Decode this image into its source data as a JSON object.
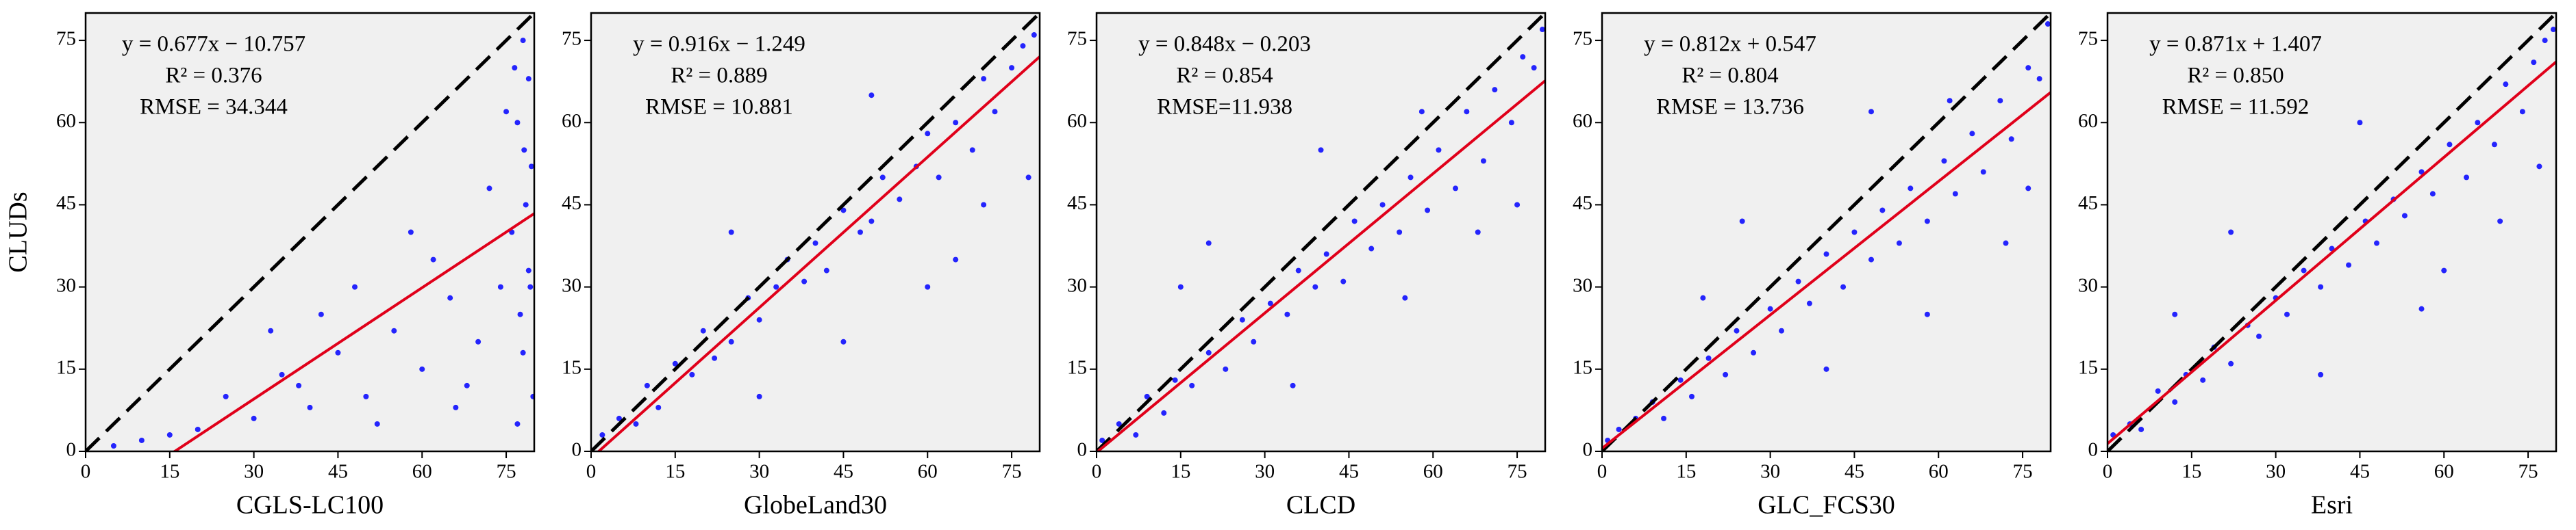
{
  "chart_data": [
    {
      "type": "scatter",
      "x_label": "CGLS-LC100",
      "y_label": "CLUDs",
      "color": "#0000ff",
      "annotations": [
        "y = 0.677x − 10.757",
        "R² = 0.376",
        "RMSE = 34.344"
      ],
      "fit": {
        "slope": 0.677,
        "intercept": -10.757,
        "color": "#e0001a"
      },
      "x": [
        78,
        79,
        77,
        79.5,
        78.5,
        76,
        79,
        77.5,
        78,
        79.8,
        76.5,
        78.2,
        79.3,
        77,
        75,
        70,
        65,
        60,
        55,
        50,
        45,
        40,
        35,
        30,
        25,
        20,
        15,
        10,
        5,
        62,
        48,
        72,
        68,
        33,
        52,
        58,
        42,
        74,
        66,
        38
      ],
      "y": [
        75,
        68,
        60,
        52,
        45,
        40,
        33,
        25,
        18,
        10,
        70,
        55,
        30,
        5,
        62,
        20,
        28,
        15,
        22,
        10,
        18,
        8,
        14,
        6,
        10,
        4,
        3,
        2,
        1,
        35,
        30,
        48,
        12,
        22,
        5,
        40,
        25,
        30,
        8,
        12
      ],
      "xlim": [
        0,
        80
      ],
      "ylim": [
        0,
        80
      ],
      "xticks": [
        0,
        15,
        30,
        45,
        60,
        75
      ],
      "yticks": [
        0,
        15,
        30,
        45,
        60,
        75
      ]
    },
    {
      "type": "scatter",
      "x_label": "GlobeLand30",
      "color": "#0000ff",
      "annotations": [
        "y = 0.916x − 1.249",
        "R² = 0.889",
        "RMSE = 10.881"
      ],
      "fit": {
        "slope": 0.916,
        "intercept": -1.249,
        "color": "#e0001a"
      },
      "x": [
        2,
        5,
        8,
        10,
        12,
        15,
        18,
        20,
        22,
        25,
        28,
        30,
        33,
        35,
        38,
        40,
        42,
        45,
        48,
        50,
        52,
        55,
        58,
        60,
        62,
        65,
        68,
        70,
        72,
        75,
        77,
        79,
        30,
        45,
        60,
        70,
        50,
        25,
        65,
        78
      ],
      "y": [
        3,
        6,
        5,
        12,
        8,
        16,
        14,
        22,
        17,
        20,
        28,
        24,
        30,
        35,
        31,
        38,
        33,
        44,
        40,
        42,
        50,
        46,
        52,
        58,
        50,
        60,
        55,
        68,
        62,
        70,
        74,
        76,
        10,
        20,
        30,
        45,
        65,
        40,
        35,
        50
      ],
      "xlim": [
        0,
        80
      ],
      "ylim": [
        0,
        80
      ],
      "xticks": [
        0,
        15,
        30,
        45,
        60,
        75
      ],
      "yticks": [
        0,
        15,
        30,
        45,
        60,
        75
      ]
    },
    {
      "type": "scatter",
      "x_label": "CLCD",
      "color": "#0000ff",
      "annotations": [
        "y = 0.848x − 0.203",
        "R² = 0.854",
        "RMSE=11.938"
      ],
      "fit": {
        "slope": 0.848,
        "intercept": -0.203,
        "color": "#e0001a"
      },
      "x": [
        1,
        4,
        7,
        9,
        12,
        14,
        17,
        20,
        23,
        26,
        28,
        31,
        34,
        36,
        39,
        41,
        44,
        46,
        49,
        51,
        54,
        56,
        59,
        61,
        64,
        66,
        69,
        71,
        74,
        76,
        78,
        79.5,
        20,
        35,
        55,
        68,
        40,
        15,
        58,
        75
      ],
      "y": [
        2,
        5,
        3,
        10,
        7,
        13,
        12,
        18,
        15,
        24,
        20,
        27,
        25,
        33,
        30,
        36,
        31,
        42,
        37,
        45,
        40,
        50,
        44,
        55,
        48,
        62,
        53,
        66,
        60,
        72,
        70,
        77,
        38,
        12,
        28,
        40,
        55,
        30,
        62,
        45
      ],
      "xlim": [
        0,
        80
      ],
      "ylim": [
        0,
        80
      ],
      "xticks": [
        0,
        15,
        30,
        45,
        60,
        75
      ],
      "yticks": [
        0,
        15,
        30,
        45,
        60,
        75
      ]
    },
    {
      "type": "scatter",
      "x_label": "GLC_FCS30",
      "color": "#0000ff",
      "annotations": [
        "y = 0.812x + 0.547",
        "R² = 0.804",
        "RMSE = 13.736"
      ],
      "fit": {
        "slope": 0.812,
        "intercept": 0.547,
        "color": "#e0001a"
      },
      "x": [
        1,
        3,
        6,
        9,
        11,
        14,
        16,
        19,
        22,
        24,
        27,
        30,
        32,
        35,
        37,
        40,
        43,
        45,
        48,
        50,
        53,
        55,
        58,
        61,
        63,
        66,
        68,
        71,
        73,
        76,
        78,
        79.5,
        25,
        40,
        58,
        72,
        48,
        18,
        62,
        76
      ],
      "y": [
        2,
        4,
        6,
        9,
        6,
        13,
        10,
        17,
        14,
        22,
        18,
        26,
        22,
        31,
        27,
        36,
        30,
        40,
        35,
        44,
        38,
        48,
        42,
        53,
        47,
        58,
        51,
        64,
        57,
        70,
        68,
        78,
        42,
        15,
        25,
        38,
        62,
        28,
        64,
        48
      ],
      "xlim": [
        0,
        80
      ],
      "ylim": [
        0,
        80
      ],
      "xticks": [
        0,
        15,
        30,
        45,
        60,
        75
      ],
      "yticks": [
        0,
        15,
        30,
        45,
        60,
        75
      ]
    },
    {
      "type": "scatter",
      "x_label": "Esri",
      "color": "#0000ff",
      "annotations": [
        "y = 0.871x + 1.407",
        "R² = 0.850",
        "RMSE = 11.592"
      ],
      "fit": {
        "slope": 0.871,
        "intercept": 1.407,
        "color": "#e0001a"
      },
      "x": [
        1,
        4,
        6,
        9,
        12,
        14,
        17,
        19,
        22,
        25,
        27,
        30,
        32,
        35,
        38,
        40,
        43,
        46,
        48,
        51,
        53,
        56,
        58,
        61,
        64,
        66,
        69,
        71,
        74,
        76,
        78,
        79.5,
        22,
        38,
        56,
        70,
        45,
        12,
        60,
        77
      ],
      "y": [
        3,
        5,
        4,
        11,
        9,
        14,
        13,
        19,
        16,
        23,
        21,
        28,
        25,
        33,
        30,
        37,
        34,
        42,
        38,
        46,
        43,
        51,
        47,
        56,
        50,
        60,
        56,
        67,
        62,
        71,
        75,
        77,
        40,
        14,
        26,
        42,
        60,
        25,
        33,
        52
      ],
      "xlim": [
        0,
        80
      ],
      "ylim": [
        0,
        80
      ],
      "xticks": [
        0,
        15,
        30,
        45,
        60,
        75
      ],
      "yticks": [
        0,
        15,
        30,
        45,
        60,
        75
      ]
    }
  ]
}
